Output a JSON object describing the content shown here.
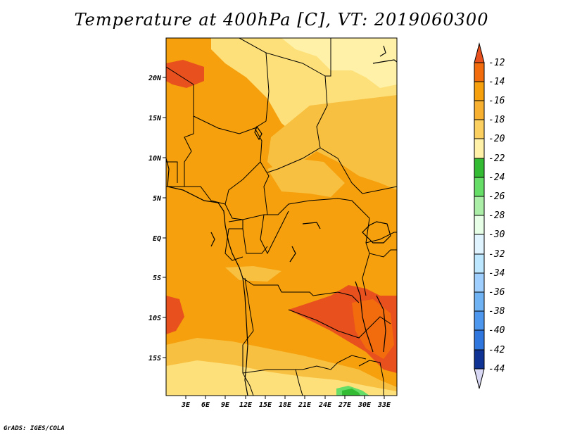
{
  "title": "Temperature at 400hPa [C], VT: 2019060300",
  "credit": "GrADS: IGES/COLA",
  "colors": {
    "c12": "#e8501e",
    "c14": "#f26c0d",
    "c16": "#f5a00c",
    "c18": "#f8c040",
    "c20": "#fde07a",
    "c22": "#fff2a8",
    "green_dark": "#33bb33",
    "green": "#66dd66",
    "green_light": "#aaeea8",
    "pale": "#e6ffe6"
  },
  "map": {
    "y_ticks": [
      "20N",
      "15N",
      "10N",
      "5N",
      "EQ",
      "5S",
      "10S",
      "15S"
    ],
    "x_ticks": [
      "3E",
      "6E",
      "9E",
      "12E",
      "15E",
      "18E",
      "21E",
      "24E",
      "27E",
      "30E",
      "33E"
    ]
  },
  "colorbar": {
    "labels": [
      "-12",
      "-14",
      "-16",
      "-18",
      "-20",
      "-22",
      "-24",
      "-26",
      "-28",
      "-30",
      "-32",
      "-34",
      "-36",
      "-38",
      "-40",
      "-42",
      "-44"
    ],
    "colors": [
      "#e8501e",
      "#f26c0d",
      "#f5a00c",
      "#f8c040",
      "#fde07a",
      "#fff2a8",
      "#33bb33",
      "#66dd66",
      "#aaeea8",
      "#e6ffe6",
      "#bde6ff",
      "#9fcfff",
      "#6fb3f5",
      "#4d97ee",
      "#2f77de",
      "#1b53c0",
      "#0e3394",
      "#0a1a6a",
      "#d8d8f4"
    ]
  }
}
